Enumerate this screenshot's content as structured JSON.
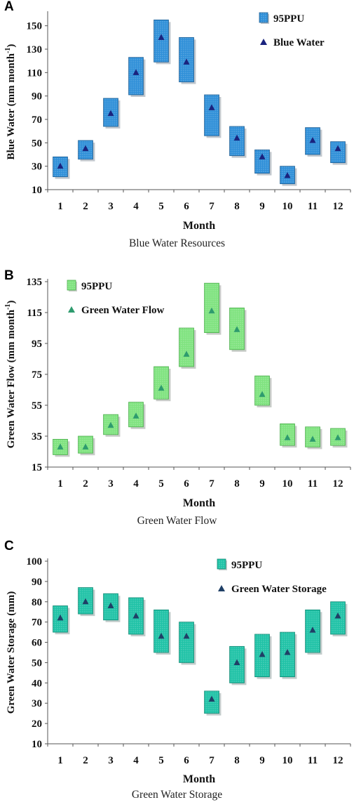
{
  "chart_data": [
    {
      "type": "range-bar",
      "panel_label": "A",
      "caption": "Blue Water Resources",
      "xlabel": "Month",
      "ylabel": "Blue Water  (mm month",
      "ylabel_sup": "-1",
      "ylabel_close": ")",
      "categories": [
        "1",
        "2",
        "3",
        "4",
        "5",
        "6",
        "7",
        "8",
        "9",
        "10",
        "11",
        "12"
      ],
      "ylim": [
        10,
        160
      ],
      "yticks": [
        10,
        30,
        50,
        70,
        90,
        110,
        130,
        150
      ],
      "legend": {
        "placement": "top-right",
        "band_label": "95PPU",
        "point_label": "Blue Water"
      },
      "series": [
        {
          "name": "95PPU",
          "low": [
            21,
            36,
            64,
            91,
            119,
            102,
            56,
            39,
            24,
            15,
            40,
            33
          ],
          "high": [
            38,
            52,
            88,
            123,
            155,
            140,
            91,
            64,
            44,
            30,
            63,
            51
          ]
        },
        {
          "name": "Blue Water",
          "values": [
            30,
            45,
            75,
            110,
            140,
            119,
            80,
            54,
            38,
            22,
            52,
            45
          ]
        }
      ],
      "colors": {
        "box": "#2f8fd8",
        "box_edge": "#1f5f94",
        "marker": "#1a237e",
        "shadow": "#8f9aa6"
      }
    },
    {
      "type": "range-bar",
      "panel_label": "B",
      "caption": "Green Water Flow",
      "xlabel": "Month",
      "ylabel": "Green Water Flow (mm month",
      "ylabel_sup": "-1",
      "ylabel_close": ")",
      "categories": [
        "1",
        "2",
        "3",
        "4",
        "5",
        "6",
        "7",
        "8",
        "9",
        "10",
        "11",
        "12"
      ],
      "ylim": [
        15,
        135
      ],
      "yticks": [
        15,
        35,
        55,
        75,
        95,
        115,
        135
      ],
      "legend": {
        "placement": "top-left",
        "band_label": "95PPU",
        "point_label": "Green Water Flow"
      },
      "series": [
        {
          "name": "95PPU",
          "low": [
            23,
            24,
            36,
            41,
            59,
            80,
            102,
            91,
            55,
            29,
            28,
            29
          ],
          "high": [
            33,
            35,
            49,
            57,
            80,
            105,
            134,
            118,
            74,
            43,
            41,
            40
          ]
        },
        {
          "name": "Green Water Flow",
          "values": [
            28,
            28,
            42,
            48,
            66,
            88,
            116,
            104,
            62,
            34,
            33,
            34
          ]
        }
      ],
      "colors": {
        "box": "#7fe37f",
        "box_edge": "#4cae4c",
        "marker": "#2e9b6e",
        "shadow": "#9aa39a"
      }
    },
    {
      "type": "range-bar",
      "panel_label": "C",
      "caption": "Green Water Storage",
      "xlabel": "Month",
      "ylabel": "Green Water Storage (mm)",
      "ylabel_sup": "",
      "ylabel_close": "",
      "categories": [
        "1",
        "2",
        "3",
        "4",
        "5",
        "6",
        "7",
        "8",
        "9",
        "10",
        "11",
        "12"
      ],
      "ylim": [
        10,
        100
      ],
      "yticks": [
        10,
        20,
        30,
        40,
        50,
        60,
        70,
        80,
        90,
        100
      ],
      "legend": {
        "placement": "top-right",
        "band_label": "95PPU",
        "point_label": "Green Water Storage"
      },
      "series": [
        {
          "name": "95PPU",
          "low": [
            65,
            74,
            71,
            64,
            55,
            50,
            25,
            40,
            43,
            43,
            55,
            64
          ],
          "high": [
            78,
            87,
            84,
            82,
            76,
            70,
            36,
            58,
            64,
            65,
            76,
            80
          ]
        },
        {
          "name": "Green Water Storage",
          "values": [
            72,
            80,
            78,
            73,
            63,
            63,
            32,
            50,
            54,
            55,
            66,
            73
          ]
        }
      ],
      "colors": {
        "box": "#1fc2a6",
        "box_edge": "#138a75",
        "marker": "#1f3f66",
        "shadow": "#8fa3a0"
      }
    }
  ]
}
